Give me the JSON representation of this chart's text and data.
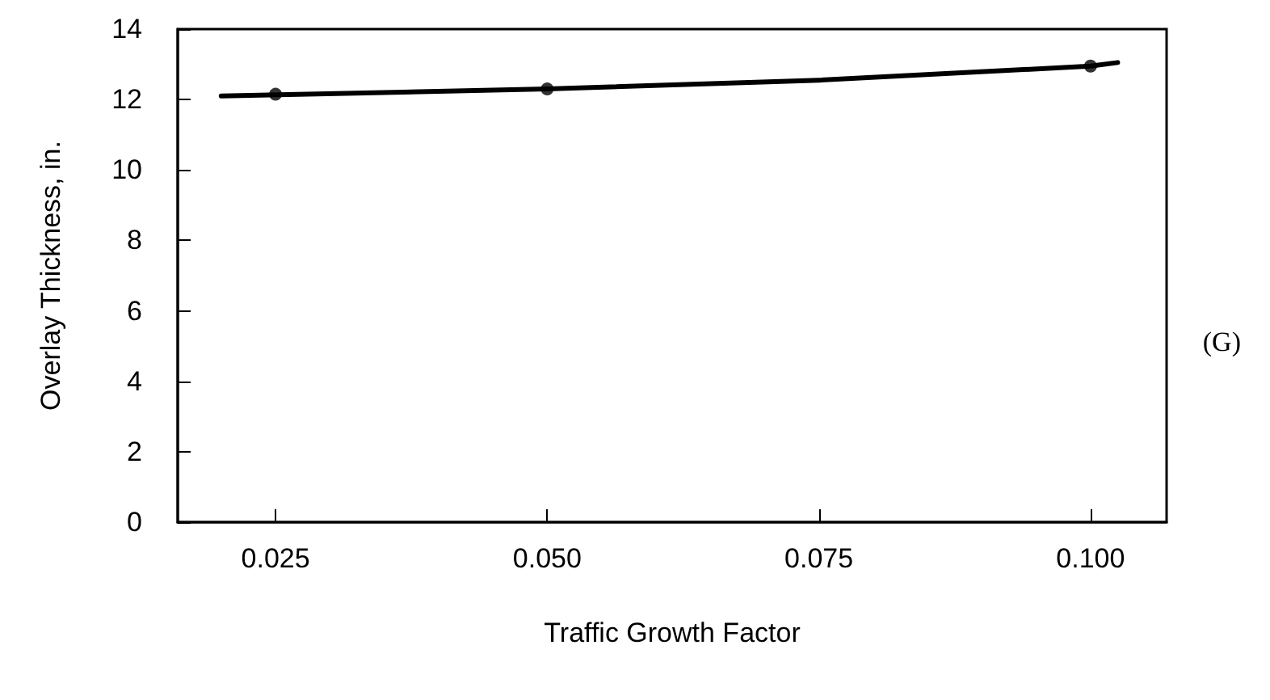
{
  "chart_data": {
    "type": "line",
    "xlabel": "Traffic Growth Factor",
    "ylabel": "Overlay Thickness, in.",
    "xlim": [
      0.016,
      0.107
    ],
    "xticks": [
      {
        "value": 0.025,
        "label": "0.025"
      },
      {
        "value": 0.05,
        "label": "0.050"
      },
      {
        "value": 0.075,
        "label": "0.075"
      },
      {
        "value": 0.1,
        "label": "0.100"
      }
    ],
    "ylim": [
      0,
      14
    ],
    "yticks": [
      0,
      2,
      4,
      6,
      8,
      10,
      12,
      14
    ],
    "series": [
      {
        "color": "#000000",
        "marker": "none",
        "x": [
          0.02,
          0.05,
          0.075,
          0.1,
          0.1025
        ],
        "values": [
          12.1,
          12.3,
          12.55,
          12.95,
          13.05
        ]
      },
      {
        "type": "scatter",
        "color": "#000000",
        "marker": "circle",
        "x": [
          0.025,
          0.05,
          0.1
        ],
        "values": [
          12.15,
          12.3,
          12.95
        ]
      }
    ],
    "annotations": [
      "(G)"
    ],
    "grid": false
  }
}
